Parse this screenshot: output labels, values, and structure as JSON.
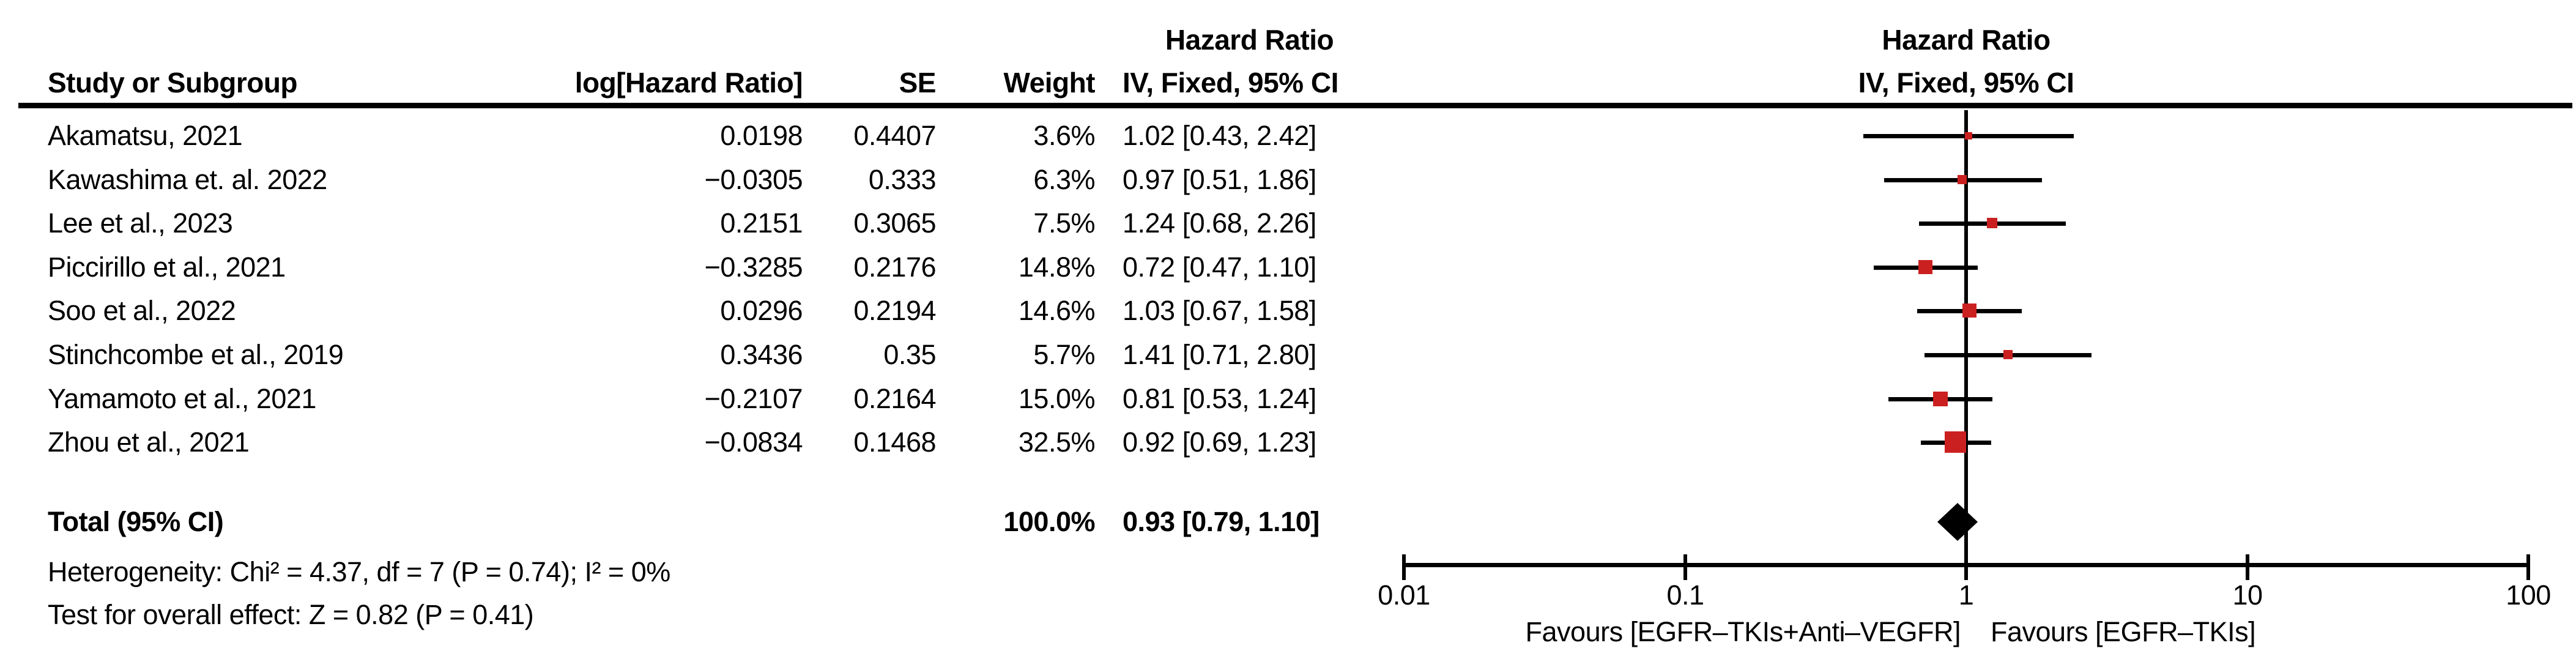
{
  "table": {
    "headers": {
      "study": "Study or Subgroup",
      "log_hr": "log[Hazard Ratio]",
      "se": "SE",
      "weight": "Weight",
      "estimate_line1": "Hazard Ratio",
      "estimate_line2": "IV, Fixed, 95% CI",
      "plot_line1": "Hazard Ratio",
      "plot_line2": "IV, Fixed, 95% CI"
    },
    "total_row": {
      "label": "Total (95% CI)",
      "weight": "100.0%",
      "estimate": "0.93 [0.79, 1.10]"
    },
    "footnotes": {
      "heterogeneity": "Heterogeneity: Chi² = 4.37, df = 7 (P = 0.74); I² = 0%",
      "overall_effect": "Test for overall effect: Z = 0.82 (P = 0.41)"
    }
  },
  "chart_data": {
    "type": "forest",
    "effect_measure": "Hazard Ratio",
    "model": "IV, Fixed, 95% CI",
    "x_axis": {
      "scale": "log",
      "range": [
        0.01,
        100
      ],
      "ticks": [
        0.01,
        0.1,
        1,
        10,
        100
      ],
      "tick_labels": [
        "0.01",
        "0.1",
        "1",
        "10",
        "100"
      ],
      "no_effect_line": 1
    },
    "studies": [
      {
        "study": "Akamatsu, 2021",
        "log_hr": "0.0198",
        "se": "0.4407",
        "weight": "3.6%",
        "estimate": "1.02 [0.43, 2.42]",
        "hr": 1.02,
        "ci_low": 0.43,
        "ci_high": 2.42,
        "weight_pct": 3.6
      },
      {
        "study": "Kawashima et. al. 2022",
        "log_hr": "−0.0305",
        "se": "0.333",
        "weight": "6.3%",
        "estimate": "0.97 [0.51, 1.86]",
        "hr": 0.97,
        "ci_low": 0.51,
        "ci_high": 1.86,
        "weight_pct": 6.3
      },
      {
        "study": "Lee et al., 2023",
        "log_hr": "0.2151",
        "se": "0.3065",
        "weight": "7.5%",
        "estimate": "1.24 [0.68, 2.26]",
        "hr": 1.24,
        "ci_low": 0.68,
        "ci_high": 2.26,
        "weight_pct": 7.5
      },
      {
        "study": "Piccirillo et al., 2021",
        "log_hr": "−0.3285",
        "se": "0.2176",
        "weight": "14.8%",
        "estimate": "0.72 [0.47, 1.10]",
        "hr": 0.72,
        "ci_low": 0.47,
        "ci_high": 1.1,
        "weight_pct": 14.8
      },
      {
        "study": "Soo et al., 2022",
        "log_hr": "0.0296",
        "se": "0.2194",
        "weight": "14.6%",
        "estimate": "1.03 [0.67, 1.58]",
        "hr": 1.03,
        "ci_low": 0.67,
        "ci_high": 1.58,
        "weight_pct": 14.6
      },
      {
        "study": "Stinchcombe et al., 2019",
        "log_hr": "0.3436",
        "se": "0.35",
        "weight": "5.7%",
        "estimate": "1.41 [0.71, 2.80]",
        "hr": 1.41,
        "ci_low": 0.71,
        "ci_high": 2.8,
        "weight_pct": 5.7
      },
      {
        "study": "Yamamoto et al., 2021",
        "log_hr": "−0.2107",
        "se": "0.2164",
        "weight": "15.0%",
        "estimate": "0.81 [0.53, 1.24]",
        "hr": 0.81,
        "ci_low": 0.53,
        "ci_high": 1.24,
        "weight_pct": 15.0
      },
      {
        "study": "Zhou et al., 2021",
        "log_hr": "−0.0834",
        "se": "0.1468",
        "weight": "32.5%",
        "estimate": "0.92 [0.69, 1.23]",
        "hr": 0.92,
        "ci_low": 0.69,
        "ci_high": 1.23,
        "weight_pct": 32.5
      }
    ],
    "total": {
      "hr": 0.93,
      "ci_low": 0.79,
      "ci_high": 1.1
    },
    "favours_left": "Favours [EGFR–TKIs+Anti–VEGFR]",
    "favours_right": "Favours [EGFR–TKIs]",
    "marker_color": "#CB2020",
    "diamond_color": "#000000",
    "line_color": "#000000"
  }
}
